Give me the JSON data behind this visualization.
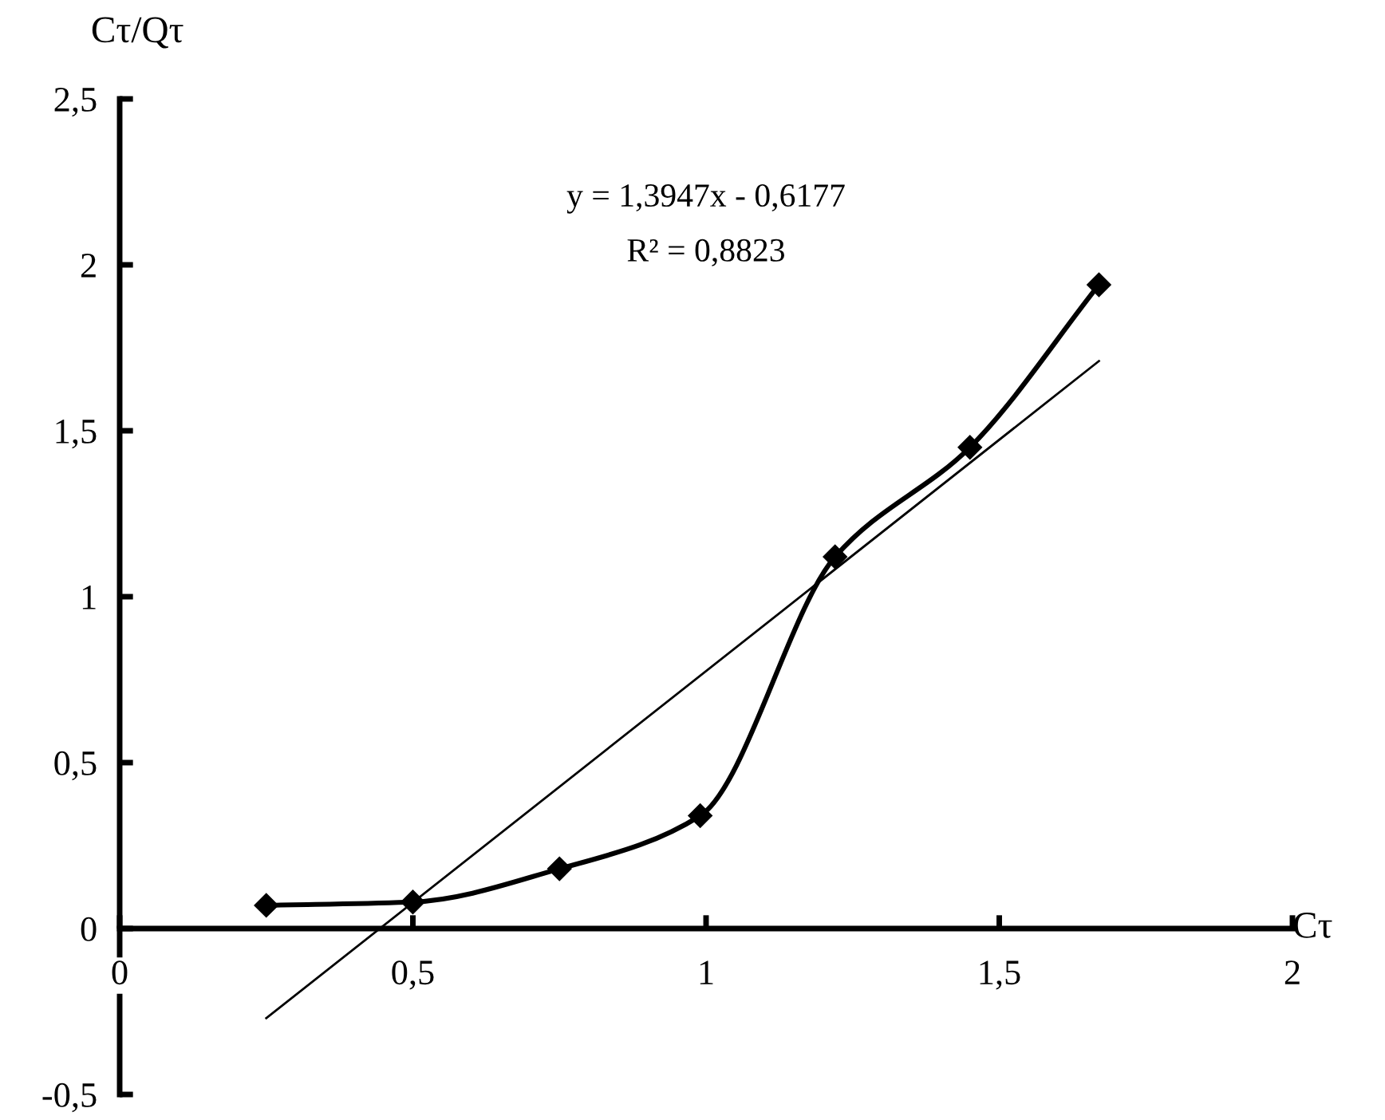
{
  "chart_data": {
    "type": "line",
    "xlabel": "Cτ",
    "ylabel": "Cτ/Qτ",
    "annotations": [
      "y = 1,3947x - 0,6177",
      "R² = 0,8823"
    ],
    "series": [
      {
        "color": "#000000",
        "marker": "diamond",
        "x": [
          0.25,
          0.5,
          0.75,
          0.99,
          1.22,
          1.45,
          1.67
        ],
        "values": [
          0.07,
          0.08,
          0.18,
          0.34,
          1.12,
          1.45,
          1.94
        ]
      },
      {
        "type": "line",
        "color": "#000000",
        "marker": "none",
        "x": [
          0.25,
          1.67
        ],
        "values": [
          -0.27,
          1.71
        ]
      }
    ],
    "xlim": [
      0,
      2
    ],
    "ylim": [
      -0.5,
      2.5
    ],
    "xticks": [
      0,
      {
        "value": 0.5,
        "label": "0,5"
      },
      1,
      {
        "value": 1.5,
        "label": "1,5"
      },
      2
    ],
    "yticks": [
      {
        "value": -0.5,
        "label": "-0,5"
      },
      0,
      {
        "value": 0.5,
        "label": "0,5"
      },
      1,
      {
        "value": 1.5,
        "label": "1,5"
      },
      2,
      {
        "value": 2.5,
        "label": "2,5"
      }
    ],
    "grid": false,
    "legend": false,
    "line_style": "solid"
  }
}
